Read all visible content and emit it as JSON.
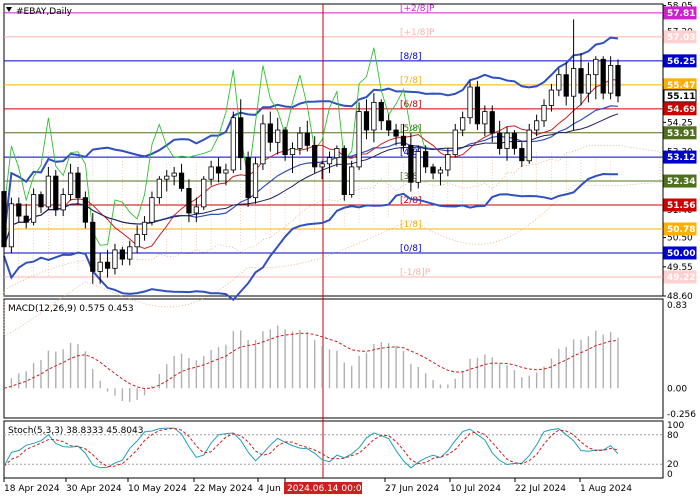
{
  "window": {
    "title": "#EBAY,Daily"
  },
  "chart_data": {
    "type": "candlestick",
    "symbol": "#EBAY",
    "timeframe": "Daily",
    "ylim": [
      48.6,
      58.1
    ],
    "price_ticks": [
      "58.05",
      "57.20",
      "56.25",
      "55.11",
      "54.25",
      "53.30",
      "52.34",
      "51.40",
      "50.50",
      "49.55",
      "48.60"
    ],
    "x_labels": [
      "18 Apr 2024",
      "30 Apr 2024",
      "10 May 2024",
      "22 May 2024",
      "4 Jun",
      "2024.06.14 00:00",
      "27 Jun 2024",
      "10 Jul 2024",
      "22 Jul 2024",
      "1 Aug 2024"
    ],
    "cursor_label": "2024.06.14 00:00",
    "murrey_levels": [
      {
        "label": "[+2/8]P",
        "value": 57.81,
        "color": "#d020d0"
      },
      {
        "label": "[+1/8]P",
        "value": 57.03,
        "color": "#ffb0b0"
      },
      {
        "label": "[8/8]",
        "value": 56.25,
        "color": "#0000cc"
      },
      {
        "label": "[7/8]",
        "value": 55.47,
        "color": "#ffb000"
      },
      {
        "label": "[6/8]",
        "value": 54.69,
        "color": "#cc0000"
      },
      {
        "label": "[5/8]",
        "value": 53.91,
        "color": "#507020"
      },
      {
        "label": "[4/8]",
        "value": 53.12,
        "color": "#0000cc"
      },
      {
        "label": "[3/8]",
        "value": 52.34,
        "color": "#507020"
      },
      {
        "label": "[2/8]",
        "value": 51.56,
        "color": "#cc0000"
      },
      {
        "label": "[1/8]",
        "value": 50.78,
        "color": "#ffb000"
      },
      {
        "label": "[0/8]",
        "value": 50.0,
        "color": "#0000cc"
      },
      {
        "label": "[-1/8]P",
        "value": 49.22,
        "color": "#ffb0b0"
      }
    ],
    "level_badges": [
      {
        "text": "57.81",
        "value": 57.81,
        "bg": "#d020d0",
        "fg": "#ffffff"
      },
      {
        "text": "57.03",
        "value": 57.03,
        "bg": "#ffd0d0",
        "fg": "#ffffff"
      },
      {
        "text": "56.25",
        "value": 56.25,
        "bg": "#0000cc",
        "fg": "#ffffff"
      },
      {
        "text": "55.47",
        "value": 55.47,
        "bg": "#ffb000",
        "fg": "#ffffff"
      },
      {
        "text": "55.11",
        "value": 55.11,
        "bg": "#ffffff",
        "fg": "#000000"
      },
      {
        "text": "54.69",
        "value": 54.69,
        "bg": "#cc0000",
        "fg": "#ffffff"
      },
      {
        "text": "53.91",
        "value": 53.91,
        "bg": "#507020",
        "fg": "#ffffff"
      },
      {
        "text": "53.12",
        "value": 53.12,
        "bg": "#0000cc",
        "fg": "#ffffff"
      },
      {
        "text": "52.34",
        "value": 52.34,
        "bg": "#507020",
        "fg": "#ffffff"
      },
      {
        "text": "51.56",
        "value": 51.56,
        "bg": "#cc0000",
        "fg": "#ffffff"
      },
      {
        "text": "50.78",
        "value": 50.78,
        "bg": "#ffb000",
        "fg": "#ffffff"
      },
      {
        "text": "50.00",
        "value": 50.0,
        "bg": "#0000cc",
        "fg": "#ffffff"
      },
      {
        "text": "49.22",
        "value": 49.22,
        "bg": "#ffd0d0",
        "fg": "#ffffff"
      }
    ],
    "candles": [
      [
        52.0,
        52.3,
        49.8,
        50.2
      ],
      [
        50.2,
        51.8,
        50.0,
        51.6
      ],
      [
        51.6,
        51.8,
        51.0,
        51.2
      ],
      [
        51.2,
        51.6,
        50.8,
        51.0
      ],
      [
        51.0,
        52.1,
        50.9,
        51.9
      ],
      [
        51.9,
        52.0,
        51.3,
        51.5
      ],
      [
        51.5,
        52.8,
        51.4,
        52.5
      ],
      [
        52.5,
        52.7,
        51.2,
        51.4
      ],
      [
        51.4,
        52.1,
        51.2,
        51.9
      ],
      [
        51.9,
        52.9,
        51.7,
        52.6
      ],
      [
        52.6,
        52.8,
        51.6,
        51.8
      ],
      [
        51.8,
        52.0,
        50.8,
        51.0
      ],
      [
        51.0,
        51.3,
        49.0,
        49.4
      ],
      [
        49.4,
        50.0,
        49.0,
        49.7
      ],
      [
        49.7,
        50.1,
        49.2,
        49.5
      ],
      [
        49.5,
        50.3,
        49.3,
        50.1
      ],
      [
        50.1,
        50.2,
        49.6,
        49.8
      ],
      [
        49.8,
        50.4,
        49.6,
        50.2
      ],
      [
        50.2,
        50.9,
        50.0,
        50.6
      ],
      [
        50.6,
        51.2,
        50.4,
        51.0
      ],
      [
        51.0,
        52.0,
        50.9,
        51.8
      ],
      [
        51.8,
        52.5,
        51.6,
        52.4
      ],
      [
        52.4,
        52.7,
        52.0,
        52.5
      ],
      [
        52.5,
        52.8,
        52.2,
        52.6
      ],
      [
        52.6,
        52.9,
        52.0,
        52.1
      ],
      [
        52.1,
        52.4,
        51.0,
        51.3
      ],
      [
        51.3,
        51.8,
        51.0,
        51.5
      ],
      [
        51.5,
        52.5,
        51.4,
        52.4
      ],
      [
        52.4,
        53.0,
        52.2,
        52.8
      ],
      [
        52.8,
        53.1,
        52.3,
        52.6
      ],
      [
        52.6,
        52.9,
        52.2,
        52.7
      ],
      [
        52.7,
        54.6,
        52.6,
        54.4
      ],
      [
        54.4,
        55.0,
        52.7,
        53.1
      ],
      [
        53.1,
        53.3,
        51.5,
        51.8
      ],
      [
        51.8,
        53.1,
        51.6,
        52.9
      ],
      [
        52.9,
        54.5,
        52.7,
        54.2
      ],
      [
        54.2,
        54.6,
        53.3,
        53.6
      ],
      [
        53.6,
        54.4,
        53.2,
        54.0
      ],
      [
        54.0,
        54.1,
        53.0,
        53.2
      ],
      [
        53.2,
        53.6,
        52.6,
        53.4
      ],
      [
        53.4,
        54.1,
        53.2,
        53.9
      ],
      [
        53.9,
        54.3,
        53.3,
        53.5
      ],
      [
        53.5,
        53.8,
        52.6,
        52.8
      ],
      [
        52.8,
        53.0,
        52.4,
        52.9
      ],
      [
        52.9,
        53.3,
        52.6,
        53.1
      ],
      [
        53.1,
        53.5,
        52.8,
        53.4
      ],
      [
        53.4,
        53.5,
        51.7,
        51.9
      ],
      [
        51.9,
        53.0,
        51.8,
        52.8
      ],
      [
        52.8,
        54.9,
        52.7,
        54.6
      ],
      [
        54.6,
        55.0,
        53.7,
        54.0
      ],
      [
        54.0,
        55.2,
        53.6,
        54.9
      ],
      [
        54.9,
        55.0,
        54.0,
        54.3
      ],
      [
        54.3,
        54.5,
        53.8,
        54.0
      ],
      [
        54.0,
        54.2,
        53.5,
        53.8
      ],
      [
        53.8,
        54.2,
        53.3,
        53.5
      ],
      [
        53.5,
        53.9,
        52.0,
        52.3
      ],
      [
        52.3,
        53.5,
        52.1,
        53.3
      ],
      [
        53.3,
        53.5,
        52.6,
        52.8
      ],
      [
        52.8,
        52.9,
        52.4,
        52.6
      ],
      [
        52.6,
        52.8,
        52.2,
        52.7
      ],
      [
        52.7,
        53.4,
        52.5,
        53.2
      ],
      [
        53.2,
        54.2,
        53.1,
        54.0
      ],
      [
        54.0,
        54.6,
        53.8,
        54.4
      ],
      [
        54.4,
        55.6,
        54.2,
        55.4
      ],
      [
        55.4,
        55.6,
        54.0,
        54.2
      ],
      [
        54.2,
        54.8,
        53.8,
        54.6
      ],
      [
        54.6,
        54.8,
        53.6,
        53.9
      ],
      [
        53.9,
        54.3,
        53.2,
        53.4
      ],
      [
        53.4,
        54.1,
        53.0,
        53.9
      ],
      [
        53.9,
        54.0,
        53.2,
        53.4
      ],
      [
        53.4,
        53.6,
        52.8,
        53.0
      ],
      [
        53.0,
        54.2,
        52.9,
        54.0
      ],
      [
        54.0,
        54.5,
        53.8,
        54.3
      ],
      [
        54.3,
        55.0,
        54.1,
        54.8
      ],
      [
        54.8,
        55.5,
        54.6,
        55.3
      ],
      [
        55.3,
        56.0,
        55.1,
        55.8
      ],
      [
        55.8,
        56.2,
        54.8,
        55.1
      ],
      [
        55.1,
        57.6,
        54.0,
        56.0
      ],
      [
        56.0,
        56.5,
        54.8,
        55.2
      ],
      [
        55.2,
        56.2,
        54.9,
        55.8
      ],
      [
        55.8,
        56.4,
        55.0,
        56.3
      ],
      [
        56.3,
        56.4,
        55.0,
        55.2
      ],
      [
        55.2,
        56.4,
        55.0,
        56.1
      ],
      [
        56.1,
        56.3,
        54.9,
        55.11
      ]
    ],
    "macd": {
      "label": "MACD(12,26,9) 0.575 0.453",
      "ticks": [
        "0.83",
        "0.00",
        "-0.256"
      ],
      "ylim": [
        -0.256,
        0.83
      ]
    },
    "stoch": {
      "label": "Stoch(5,3,3) 38.8333 45.8043",
      "ticks": [
        "100",
        "80",
        "20",
        "0"
      ],
      "ylim": [
        0,
        100
      ]
    }
  }
}
